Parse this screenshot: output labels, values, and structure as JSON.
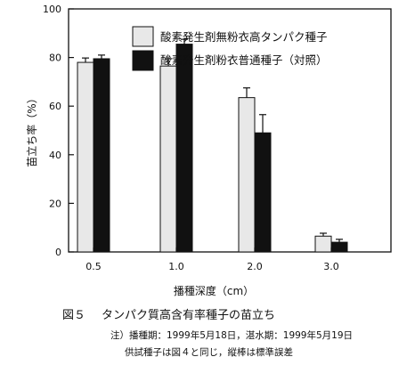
{
  "chart_data": {
    "type": "bar",
    "categories": [
      "0.5",
      "1.0",
      "2.0",
      "3.0"
    ],
    "series": [
      {
        "name": "酸素発生剤無粉衣高タンパク種子",
        "values": [
          78,
          76.5,
          63.5,
          6.5
        ],
        "errors": [
          1.8,
          3.0,
          4.0,
          1.2
        ],
        "fill": "#e8e8e8"
      },
      {
        "name": "酸素発生剤粉衣普通種子（対照）",
        "values": [
          79.5,
          85.5,
          49,
          4
        ],
        "errors": [
          1.5,
          2.0,
          7.5,
          1.2
        ],
        "fill": "#111111"
      }
    ],
    "ylim": [
      0,
      100
    ],
    "yticks": [
      0,
      20,
      40,
      60,
      80,
      100
    ],
    "ylabel": "苗立ち率（%）",
    "xlabel": "播種深度（cm）",
    "legend_position": "top-right",
    "grid": false
  },
  "caption": {
    "figure_number": "図５",
    "title": "タンパク質高含有率種子の苗立ち"
  },
  "notes": [
    "注）播種期：1999年5月18日，湛水期：1999年5月19日",
    "供試種子は図４と同じ，縦棒は標準誤差"
  ]
}
